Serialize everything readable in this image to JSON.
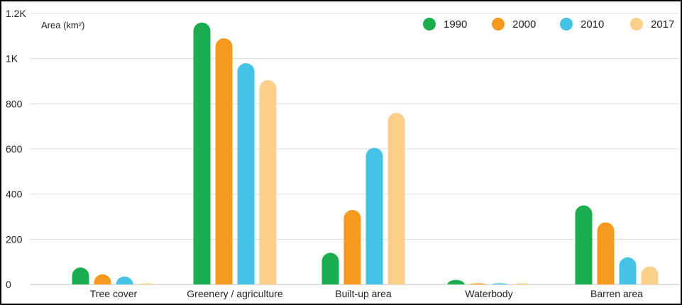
{
  "chart_data": {
    "type": "bar",
    "title": "",
    "ylabel": "Area (km²)",
    "xlabel": "",
    "ylim": [
      0,
      1200
    ],
    "yticks": [
      0,
      200,
      400,
      600,
      800,
      1000,
      1200
    ],
    "ytick_labels": [
      "0",
      "200",
      "400",
      "600",
      "800",
      "1K",
      "1.2K"
    ],
    "grid": true,
    "legend_position": "top-right",
    "categories": [
      "Tree cover",
      "Greenery / agriculture",
      "Built-up area",
      "Waterbody",
      "Barren area"
    ],
    "series": [
      {
        "name": "1990",
        "color": "#1aae4f",
        "values": [
          75,
          1160,
          140,
          20,
          350
        ]
      },
      {
        "name": "2000",
        "color": "#f5991f",
        "values": [
          45,
          1090,
          330,
          5,
          275
        ]
      },
      {
        "name": "2010",
        "color": "#44c3e6",
        "values": [
          35,
          980,
          605,
          5,
          120
        ]
      },
      {
        "name": "2017",
        "color": "#fdd08a",
        "values": [
          5,
          905,
          760,
          5,
          80
        ]
      }
    ]
  }
}
